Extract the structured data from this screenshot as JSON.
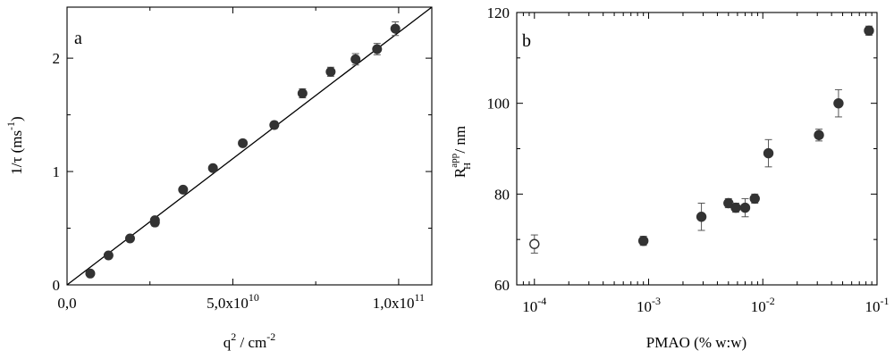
{
  "chart_data": [
    {
      "type": "scatter",
      "panel_label": "a",
      "xlabel": "q",
      "xlabel_sup": "2",
      "xlabel_unit": " / cm",
      "xlabel_unit_sup": "-2",
      "ylabel": "1/τ  (ms",
      "ylabel_sup": "-1",
      "ylabel_tail": ")",
      "xlim": [
        0,
        110000000000.0
      ],
      "ylim": [
        0,
        2.45
      ],
      "xticks": [
        0,
        50000000000.0,
        100000000000.0
      ],
      "xtick_labels": [
        {
          "base": "0,0",
          "exp": ""
        },
        {
          "base": "5,0x10",
          "exp": "10"
        },
        {
          "base": "1,0x10",
          "exp": "11"
        }
      ],
      "xminor": [
        25000000000.0,
        75000000000.0
      ],
      "yticks": [
        0,
        1,
        2
      ],
      "ytick_labels": [
        "0",
        "1",
        "2"
      ],
      "yminor": [
        0.5,
        1.5
      ],
      "fit_line": {
        "x": [
          0,
          110000000000.0
        ],
        "y": [
          0,
          2.45
        ]
      },
      "points": [
        {
          "x": 7000000000.0,
          "y": 0.1,
          "err": 0
        },
        {
          "x": 12500000000.0,
          "y": 0.26,
          "err": 0
        },
        {
          "x": 19000000000.0,
          "y": 0.41,
          "err": 0
        },
        {
          "x": 26500000000.0,
          "y": 0.55,
          "err": 0.03
        },
        {
          "x": 26500000000.0,
          "y": 0.57,
          "err": 0
        },
        {
          "x": 35000000000.0,
          "y": 0.84,
          "err": 0
        },
        {
          "x": 44000000000.0,
          "y": 1.03,
          "err": 0
        },
        {
          "x": 53000000000.0,
          "y": 1.25,
          "err": 0
        },
        {
          "x": 62500000000.0,
          "y": 1.41,
          "err": 0.03
        },
        {
          "x": 71000000000.0,
          "y": 1.69,
          "err": 0.04
        },
        {
          "x": 79500000000.0,
          "y": 1.88,
          "err": 0.04
        },
        {
          "x": 87000000000.0,
          "y": 1.99,
          "err": 0.05
        },
        {
          "x": 93500000000.0,
          "y": 2.08,
          "err": 0.05
        },
        {
          "x": 99000000000.0,
          "y": 2.26,
          "err": 0.06
        }
      ]
    },
    {
      "type": "scatter",
      "panel_label": "b",
      "xlabel": "PMAO (% w:w)",
      "ylabel_main": "R",
      "ylabel_sup": "app",
      "ylabel_sub": "H",
      "ylabel_tail": " / nm",
      "x_scale": "log",
      "xlim": [
        7e-05,
        0.1
      ],
      "ylim": [
        60,
        120
      ],
      "xticks": [
        0.0001,
        0.001,
        0.01,
        0.1
      ],
      "xtick_labels": [
        {
          "base": "10",
          "exp": "-4"
        },
        {
          "base": "10",
          "exp": "-3"
        },
        {
          "base": "10",
          "exp": "-2"
        },
        {
          "base": "10",
          "exp": "-1"
        }
      ],
      "yticks": [
        60,
        80,
        100,
        120
      ],
      "ytick_labels": [
        "60",
        "80",
        "100",
        "120"
      ],
      "yminor": [
        70,
        90,
        110
      ],
      "points": [
        {
          "x": 0.0001,
          "y": 69,
          "err": 2,
          "open": true
        },
        {
          "x": 0.0009,
          "y": 69.7,
          "err": 1,
          "open": false
        },
        {
          "x": 0.0029,
          "y": 75,
          "err": 3,
          "open": false
        },
        {
          "x": 0.005,
          "y": 78,
          "err": 1,
          "open": false
        },
        {
          "x": 0.0058,
          "y": 77,
          "err": 1,
          "open": false
        },
        {
          "x": 0.007,
          "y": 77,
          "err": 2,
          "open": false
        },
        {
          "x": 0.0085,
          "y": 79,
          "err": 1,
          "open": false
        },
        {
          "x": 0.0112,
          "y": 89,
          "err": 3,
          "open": false
        },
        {
          "x": 0.031,
          "y": 93,
          "err": 1.3,
          "open": false
        },
        {
          "x": 0.046,
          "y": 100,
          "err": 3,
          "open": false
        },
        {
          "x": 0.085,
          "y": 116,
          "err": 1,
          "open": false
        }
      ]
    }
  ]
}
